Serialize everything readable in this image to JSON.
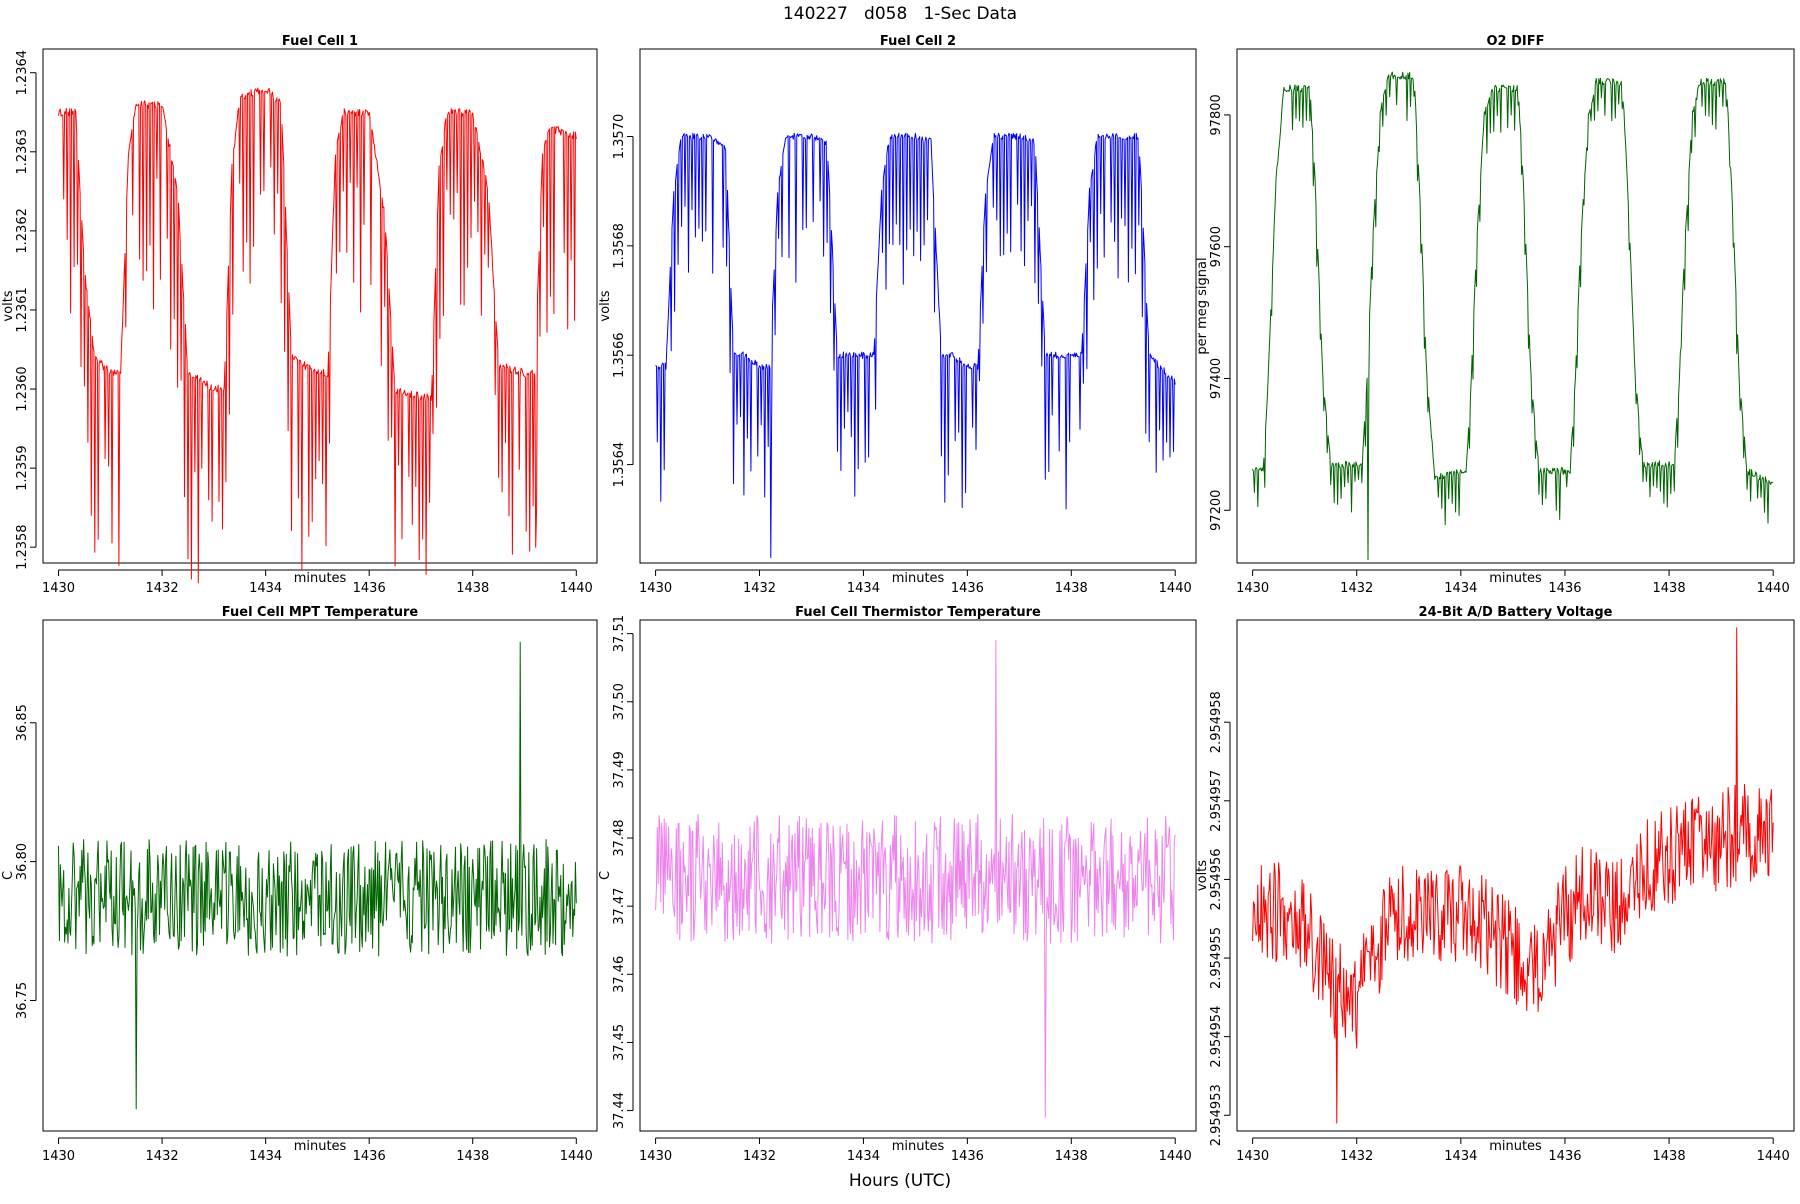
{
  "figure": {
    "suptitle": "140227   d058   1-Sec Data",
    "bottom_label": "Hours (UTC)"
  },
  "chart_data": [
    {
      "type": "line",
      "title": "Fuel Cell 1",
      "xlabel": "minutes",
      "ylabel": "volts",
      "color": "#ff0000",
      "xlim": [
        1429.7,
        1440.4
      ],
      "ylim": [
        1.23578,
        1.23643
      ],
      "xticks": [
        1430,
        1432,
        1434,
        1436,
        1438,
        1440
      ],
      "xtick_labels": [
        "1430",
        "1432",
        "1434",
        "1436",
        "1438",
        "1440"
      ],
      "yticks": [
        1.2358,
        1.2359,
        1.236,
        1.2361,
        1.2362,
        1.2363,
        1.2364
      ],
      "ytick_labels": [
        "1.2358",
        "1.2359",
        "1.2360",
        "1.2361",
        "1.2362",
        "1.2363",
        "1.2364"
      ],
      "x": [
        1430.0,
        1430.33,
        1430.5,
        1430.7,
        1431.0,
        1431.2,
        1431.35,
        1431.5,
        1432.0,
        1432.3,
        1432.5,
        1433.0,
        1433.2,
        1433.35,
        1433.5,
        1434.0,
        1434.3,
        1434.5,
        1435.0,
        1435.2,
        1435.35,
        1435.5,
        1436.0,
        1436.3,
        1436.5,
        1437.0,
        1437.2,
        1437.35,
        1437.5,
        1438.0,
        1438.3,
        1438.5,
        1439.0,
        1439.2,
        1439.35,
        1439.5,
        1440.0
      ],
      "y": [
        1.23635,
        1.23635,
        1.23615,
        1.23604,
        1.23602,
        1.23602,
        1.2363,
        1.23636,
        1.23636,
        1.23625,
        1.23602,
        1.236,
        1.236,
        1.23628,
        1.23637,
        1.23638,
        1.23636,
        1.23604,
        1.23602,
        1.23602,
        1.2363,
        1.23635,
        1.23635,
        1.23622,
        1.236,
        1.23599,
        1.23599,
        1.23628,
        1.23635,
        1.23635,
        1.23625,
        1.23603,
        1.23602,
        1.23602,
        1.2363,
        1.23633,
        1.23632
      ],
      "noise": 5e-06,
      "spike_depth": 0.00026,
      "min_point": [
        1439.22,
        1.2358
      ]
    },
    {
      "type": "line",
      "title": "Fuel Cell 2",
      "xlabel": "minutes",
      "ylabel": "volts",
      "color": "#0000ff",
      "xlim": [
        1429.7,
        1440.4
      ],
      "ylim": [
        1.35622,
        1.35716
      ],
      "xticks": [
        1430,
        1432,
        1434,
        1436,
        1438,
        1440
      ],
      "xtick_labels": [
        "1430",
        "1432",
        "1434",
        "1436",
        "1438",
        "1440"
      ],
      "yticks": [
        1.3564,
        1.3566,
        1.3568,
        1.357
      ],
      "ytick_labels": [
        "1.3564",
        "1.3566",
        "1.3568",
        "1.3570"
      ],
      "x": [
        1430.0,
        1430.2,
        1430.35,
        1430.5,
        1431.0,
        1431.35,
        1431.5,
        1431.7,
        1432.0,
        1432.2,
        1432.35,
        1432.5,
        1433.0,
        1433.3,
        1433.5,
        1433.7,
        1434.0,
        1434.2,
        1434.35,
        1434.5,
        1435.0,
        1435.3,
        1435.5,
        1435.7,
        1436.0,
        1436.2,
        1436.35,
        1436.5,
        1437.0,
        1437.3,
        1437.5,
        1437.7,
        1438.0,
        1438.2,
        1438.35,
        1438.5,
        1439.0,
        1439.3,
        1439.5,
        1439.7,
        1440.0
      ],
      "y": [
        1.35658,
        1.35658,
        1.3569,
        1.357,
        1.357,
        1.35698,
        1.3566,
        1.3566,
        1.35658,
        1.35658,
        1.3569,
        1.357,
        1.357,
        1.35699,
        1.3566,
        1.3566,
        1.3566,
        1.3566,
        1.3569,
        1.357,
        1.357,
        1.35699,
        1.3566,
        1.3566,
        1.35658,
        1.35658,
        1.3569,
        1.357,
        1.357,
        1.35699,
        1.3566,
        1.3566,
        1.3566,
        1.3566,
        1.3569,
        1.357,
        1.357,
        1.357,
        1.3566,
        1.35658,
        1.35655
      ],
      "noise": 6e-06,
      "spike_depth": 0.00028,
      "min_point": [
        1432.22,
        1.35623
      ]
    },
    {
      "type": "line",
      "title": "O2 DIFF",
      "xlabel": "minutes",
      "ylabel": "per meg signal",
      "color": "#006400",
      "xlim": [
        1429.7,
        1440.4
      ],
      "ylim": [
        97120,
        97900
      ],
      "xticks": [
        1430,
        1432,
        1434,
        1436,
        1438,
        1440
      ],
      "xtick_labels": [
        "1430",
        "1432",
        "1434",
        "1436",
        "1438",
        "1440"
      ],
      "yticks": [
        97200,
        97400,
        97600,
        97800
      ],
      "ytick_labels": [
        "97200",
        "97400",
        "97600",
        "97800"
      ],
      "x": [
        1430.0,
        1430.2,
        1430.3,
        1430.45,
        1430.6,
        1431.1,
        1431.2,
        1431.35,
        1431.5,
        1432.1,
        1432.2,
        1432.3,
        1432.45,
        1432.6,
        1433.1,
        1433.2,
        1433.35,
        1433.5,
        1434.1,
        1434.2,
        1434.3,
        1434.45,
        1434.6,
        1435.1,
        1435.2,
        1435.35,
        1435.5,
        1436.1,
        1436.2,
        1436.3,
        1436.45,
        1436.6,
        1437.1,
        1437.2,
        1437.35,
        1437.5,
        1438.1,
        1438.2,
        1438.3,
        1438.45,
        1438.6,
        1439.1,
        1439.2,
        1439.35,
        1439.5,
        1440.0
      ],
      "y": [
        97260,
        97260,
        97400,
        97700,
        97840,
        97840,
        97700,
        97400,
        97270,
        97270,
        97400,
        97600,
        97800,
        97860,
        97860,
        97700,
        97400,
        97250,
        97260,
        97400,
        97600,
        97800,
        97840,
        97840,
        97700,
        97400,
        97260,
        97260,
        97400,
        97600,
        97800,
        97850,
        97850,
        97700,
        97400,
        97270,
        97270,
        97400,
        97600,
        97800,
        97850,
        97850,
        97700,
        97400,
        97260,
        97240
      ],
      "noise": 6,
      "spike_depth": 70,
      "min_point": [
        1432.22,
        97125
      ]
    },
    {
      "type": "line",
      "title": "Fuel Cell MPT Temperature",
      "xlabel": "minutes",
      "ylabel": "C",
      "color": "#006400",
      "xlim": [
        1429.7,
        1440.4
      ],
      "ylim": [
        36.703,
        36.887
      ],
      "xticks": [
        1430,
        1432,
        1434,
        1436,
        1438,
        1440
      ],
      "xtick_labels": [
        "1430",
        "1432",
        "1434",
        "1436",
        "1438",
        "1440"
      ],
      "yticks": [
        36.75,
        36.8,
        36.85
      ],
      "ytick_labels": [
        "36.75",
        "36.80",
        "36.85"
      ],
      "x": [
        1430.0,
        1440.0
      ],
      "y": [
        36.787,
        36.787
      ],
      "noise": 0.021,
      "spike_depth": 0,
      "max_point": [
        1438.92,
        36.879
      ],
      "min_point": [
        1431.5,
        36.711
      ]
    },
    {
      "type": "line",
      "title": "Fuel Cell Thermistor Temperature",
      "xlabel": "minutes",
      "ylabel": "C",
      "color": "#ee82ee",
      "xlim": [
        1429.7,
        1440.4
      ],
      "ylim": [
        37.437,
        37.512
      ],
      "xticks": [
        1430,
        1432,
        1434,
        1436,
        1438,
        1440
      ],
      "xtick_labels": [
        "1430",
        "1432",
        "1434",
        "1436",
        "1438",
        "1440"
      ],
      "yticks": [
        37.44,
        37.45,
        37.46,
        37.47,
        37.48,
        37.49,
        37.5,
        37.51
      ],
      "ytick_labels": [
        "37.44",
        "37.45",
        "37.46",
        "37.47",
        "37.48",
        "37.49",
        "37.50",
        "37.51"
      ],
      "x": [
        1430.0,
        1440.0
      ],
      "y": [
        37.474,
        37.474
      ],
      "noise": 0.0095,
      "spike_depth": 0,
      "max_point": [
        1436.55,
        37.509
      ],
      "min_point": [
        1437.5,
        37.439
      ]
    },
    {
      "type": "line",
      "title": "24-Bit A/D Battery Voltage",
      "xlabel": "minutes",
      "ylabel": "volts",
      "color": "#ff0000",
      "xlim": [
        1429.7,
        1440.4
      ],
      "ylim": [
        2.9549528,
        2.9549593
      ],
      "xticks": [
        1430,
        1432,
        1434,
        1436,
        1438,
        1440
      ],
      "xtick_labels": [
        "1430",
        "1432",
        "1434",
        "1436",
        "1438",
        "1440"
      ],
      "yticks": [
        2.954953,
        2.954954,
        2.954955,
        2.954956,
        2.954957,
        2.954958
      ],
      "ytick_labels": [
        "2.954953",
        "2.954954",
        "2.954955",
        "2.954956",
        "2.954957",
        "2.954958"
      ],
      "x": [
        1430.0,
        1430.5,
        1431.0,
        1431.5,
        1432.0,
        1432.5,
        1433.0,
        1433.5,
        1434.0,
        1434.5,
        1435.0,
        1435.5,
        1436.0,
        1436.5,
        1437.0,
        1437.5,
        1438.0,
        1438.5,
        1439.0,
        1439.5,
        1440.0
      ],
      "y": [
        2.9549555,
        2.9549556,
        2.9549555,
        2.9549546,
        2.9549545,
        2.9549553,
        2.9549556,
        2.9549555,
        2.9549556,
        2.9549554,
        2.9549551,
        2.9549548,
        2.9549555,
        2.9549559,
        2.9549556,
        2.9549561,
        2.9549563,
        2.9549564,
        2.9549565,
        2.9549566,
        2.9549566
      ],
      "noise": 6.5e-07,
      "spike_depth": 0,
      "max_point": [
        1439.3,
        2.9549592
      ],
      "min_point": [
        1431.62,
        2.9549529
      ]
    }
  ]
}
